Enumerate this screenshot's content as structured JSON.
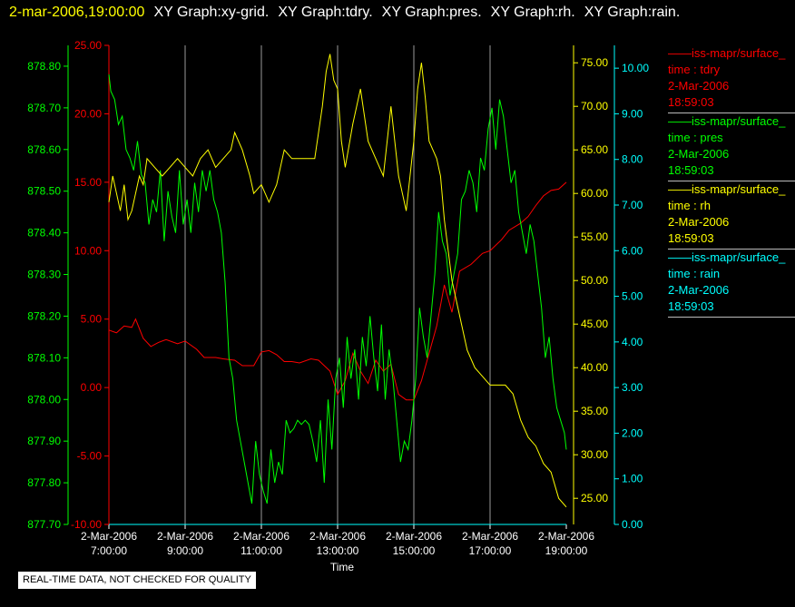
{
  "header": {
    "timestamp": "2-mar-2006,19:00:00",
    "graphs": [
      "XY Graph:xy-grid.",
      "XY Graph:tdry.",
      "XY Graph:pres.",
      "XY Graph:rh.",
      "XY Graph:rain."
    ]
  },
  "notice": "REAL-TIME DATA, NOT CHECKED FOR QUALITY",
  "legend": [
    {
      "lines": [
        "iss-mapr/surface_",
        "time : tdry",
        "2-Mar-2006",
        "18:59:03"
      ],
      "color": "#ff0000"
    },
    {
      "lines": [
        "iss-mapr/surface_",
        "time : pres",
        "2-Mar-2006",
        "18:59:03"
      ],
      "color": "#00ff00"
    },
    {
      "lines": [
        "iss-mapr/surface_",
        "time : rh",
        "2-Mar-2006",
        "18:59:03"
      ],
      "color": "#ffff00"
    },
    {
      "lines": [
        "iss-mapr/surface_",
        "time : rain",
        "2-Mar-2006",
        "18:59:03"
      ],
      "color": "#00ffff"
    }
  ],
  "chart_data": {
    "type": "line",
    "xlabel": "Time",
    "x_ticks": [
      {
        "date": "2-Mar-2006",
        "time": "7:00:00",
        "hour": 7
      },
      {
        "date": "2-Mar-2006",
        "time": "9:00:00",
        "hour": 9
      },
      {
        "date": "2-Mar-2006",
        "time": "11:00:00",
        "hour": 11
      },
      {
        "date": "2-Mar-2006",
        "time": "13:00:00",
        "hour": 13
      },
      {
        "date": "2-Mar-2006",
        "time": "15:00:00",
        "hour": 15
      },
      {
        "date": "2-Mar-2006",
        "time": "17:00:00",
        "hour": 17
      },
      {
        "date": "2-Mar-2006",
        "time": "19:00:00",
        "hour": 19
      }
    ],
    "xlim": [
      7,
      19
    ],
    "grid": true,
    "axes": [
      {
        "id": "pres",
        "color": "#00ff00",
        "ylim": [
          877.7,
          878.85
        ],
        "ticks": [
          "877.70",
          "877.80",
          "877.90",
          "878.00",
          "878.10",
          "878.20",
          "878.30",
          "878.40",
          "878.50",
          "878.60",
          "878.70",
          "878.80"
        ]
      },
      {
        "id": "tdry",
        "color": "#ff0000",
        "ylim": [
          -10,
          25
        ],
        "ticks": [
          "-10.00",
          "-5.00",
          "0.00",
          "5.00",
          "10.00",
          "15.00",
          "20.00",
          "25.00"
        ]
      },
      {
        "id": "rh",
        "color": "#ffff00",
        "ylim": [
          22,
          77
        ],
        "ticks": [
          "25.00",
          "30.00",
          "35.00",
          "40.00",
          "45.00",
          "50.00",
          "55.00",
          "60.00",
          "65.00",
          "70.00",
          "75.00"
        ]
      },
      {
        "id": "rain",
        "color": "#00ffff",
        "ylim": [
          0,
          10.5
        ],
        "ticks": [
          "0.00",
          "1.00",
          "2.00",
          "3.00",
          "4.00",
          "5.00",
          "6.00",
          "7.00",
          "8.00",
          "9.00",
          "10.00"
        ]
      }
    ],
    "series": [
      {
        "name": "tdry",
        "axis": "tdry",
        "color": "#ff0000",
        "x": [
          7.0,
          7.2,
          7.4,
          7.6,
          7.7,
          7.9,
          8.1,
          8.3,
          8.5,
          8.8,
          9.0,
          9.3,
          9.5,
          9.8,
          10.0,
          10.3,
          10.5,
          10.8,
          11.0,
          11.2,
          11.4,
          11.6,
          11.8,
          12.0,
          12.3,
          12.5,
          12.8,
          13.0,
          13.2,
          13.4,
          13.6,
          13.8,
          14.0,
          14.2,
          14.4,
          14.6,
          14.8,
          15.0,
          15.2,
          15.4,
          15.6,
          15.8,
          16.0,
          16.2,
          16.5,
          16.8,
          17.0,
          17.3,
          17.5,
          17.8,
          18.0,
          18.2,
          18.4,
          18.6,
          18.8,
          19.0
        ],
        "y": [
          4.2,
          4.0,
          4.5,
          4.4,
          5.0,
          3.6,
          3.0,
          3.3,
          3.5,
          3.2,
          3.4,
          2.8,
          2.2,
          2.2,
          2.1,
          2.0,
          1.6,
          1.6,
          2.6,
          2.7,
          2.4,
          1.9,
          1.9,
          1.8,
          2.1,
          2.0,
          1.2,
          -0.5,
          0.5,
          2.5,
          1.2,
          0.3,
          2.0,
          1.2,
          1.7,
          -0.5,
          -0.9,
          -0.9,
          0.5,
          2.5,
          4.5,
          7.5,
          5.5,
          8.5,
          9.0,
          9.8,
          10.0,
          10.8,
          11.5,
          12.0,
          12.5,
          13.3,
          14.0,
          14.4,
          14.5,
          15.0
        ]
      },
      {
        "name": "pres",
        "axis": "pres",
        "color": "#00ff00",
        "x": [
          7.0,
          7.05,
          7.15,
          7.25,
          7.35,
          7.45,
          7.55,
          7.65,
          7.75,
          7.85,
          7.95,
          8.05,
          8.15,
          8.25,
          8.35,
          8.45,
          8.55,
          8.65,
          8.75,
          8.85,
          8.95,
          9.05,
          9.15,
          9.25,
          9.35,
          9.45,
          9.55,
          9.65,
          9.75,
          9.85,
          9.95,
          10.05,
          10.15,
          10.25,
          10.35,
          10.45,
          10.55,
          10.65,
          10.75,
          10.85,
          10.95,
          11.05,
          11.15,
          11.25,
          11.35,
          11.45,
          11.55,
          11.65,
          11.75,
          11.85,
          11.95,
          12.05,
          12.15,
          12.25,
          12.35,
          12.45,
          12.55,
          12.65,
          12.75,
          12.85,
          12.95,
          13.05,
          13.15,
          13.25,
          13.35,
          13.45,
          13.55,
          13.65,
          13.75,
          13.85,
          13.95,
          14.05,
          14.15,
          14.25,
          14.35,
          14.45,
          14.55,
          14.65,
          14.75,
          14.85,
          14.95,
          15.05,
          15.15,
          15.25,
          15.35,
          15.45,
          15.55,
          15.65,
          15.75,
          15.85,
          15.95,
          16.05,
          16.15,
          16.25,
          16.35,
          16.45,
          16.55,
          16.65,
          16.75,
          16.85,
          16.95,
          17.05,
          17.15,
          17.25,
          17.35,
          17.45,
          17.55,
          17.65,
          17.75,
          17.85,
          17.95,
          18.05,
          18.15,
          18.25,
          18.35,
          18.45,
          18.55,
          18.65,
          18.75,
          18.85,
          18.95,
          19.0
        ],
        "y": [
          878.78,
          878.74,
          878.72,
          878.66,
          878.68,
          878.6,
          878.58,
          878.55,
          878.62,
          878.54,
          878.52,
          878.42,
          878.48,
          878.45,
          878.55,
          878.38,
          878.5,
          878.44,
          878.4,
          878.55,
          878.42,
          878.48,
          878.4,
          878.52,
          878.45,
          878.55,
          878.5,
          878.55,
          878.48,
          878.45,
          878.4,
          878.28,
          878.1,
          878.05,
          877.95,
          877.9,
          877.85,
          877.8,
          877.75,
          877.9,
          877.82,
          877.78,
          877.75,
          877.88,
          877.8,
          877.85,
          877.82,
          877.95,
          877.92,
          877.93,
          877.95,
          877.94,
          877.95,
          877.94,
          877.9,
          877.85,
          877.95,
          877.8,
          878.0,
          877.88,
          878.05,
          878.1,
          877.98,
          878.15,
          878.05,
          878.12,
          878.0,
          878.15,
          878.08,
          878.2,
          878.1,
          878.02,
          878.18,
          878.0,
          878.12,
          878.05,
          877.95,
          877.85,
          877.9,
          877.88,
          877.95,
          878.05,
          878.22,
          878.15,
          878.1,
          878.2,
          878.3,
          878.45,
          878.38,
          878.35,
          878.25,
          878.3,
          878.35,
          878.48,
          878.5,
          878.55,
          878.52,
          878.45,
          878.58,
          878.55,
          878.65,
          878.7,
          878.6,
          878.72,
          878.68,
          878.6,
          878.52,
          878.55,
          878.45,
          878.4,
          878.35,
          878.42,
          878.38,
          878.3,
          878.22,
          878.1,
          878.15,
          878.05,
          877.98,
          877.95,
          877.92,
          877.88
        ]
      },
      {
        "name": "rh",
        "axis": "rh",
        "color": "#ffff00",
        "x": [
          7.0,
          7.1,
          7.2,
          7.3,
          7.4,
          7.5,
          7.6,
          7.7,
          7.8,
          7.9,
          8.0,
          8.2,
          8.4,
          8.6,
          8.8,
          9.0,
          9.2,
          9.4,
          9.6,
          9.8,
          10.0,
          10.2,
          10.3,
          10.5,
          10.7,
          10.8,
          11.0,
          11.2,
          11.4,
          11.6,
          11.8,
          12.0,
          12.2,
          12.4,
          12.6,
          12.7,
          12.8,
          12.9,
          13.0,
          13.1,
          13.2,
          13.4,
          13.6,
          13.8,
          14.0,
          14.2,
          14.4,
          14.6,
          14.7,
          14.8,
          14.9,
          15.0,
          15.1,
          15.2,
          15.3,
          15.4,
          15.5,
          15.6,
          15.7,
          15.8,
          16.0,
          16.2,
          16.4,
          16.6,
          16.8,
          17.0,
          17.2,
          17.4,
          17.6,
          17.8,
          18.0,
          18.2,
          18.4,
          18.6,
          18.8,
          19.0
        ],
        "y": [
          59,
          62,
          60,
          58,
          61,
          57,
          58,
          60,
          62,
          61,
          64,
          63,
          62,
          63,
          64,
          63,
          62,
          64,
          65,
          63,
          64,
          65,
          67,
          65,
          62,
          60,
          61,
          59,
          61,
          65,
          64,
          64,
          64,
          64,
          70,
          74,
          76,
          73,
          72,
          66,
          63,
          68,
          72,
          66,
          64,
          62,
          70,
          62,
          60,
          58,
          62,
          66,
          72,
          75,
          71,
          66,
          65,
          64,
          62,
          57,
          50,
          46,
          42,
          40,
          39,
          38,
          38,
          38,
          37,
          34,
          32,
          31,
          29,
          28,
          25,
          24
        ]
      },
      {
        "name": "rain",
        "axis": "rain",
        "color": "#00ffff",
        "x": [
          7,
          19
        ],
        "y": [
          0,
          0
        ]
      }
    ]
  }
}
